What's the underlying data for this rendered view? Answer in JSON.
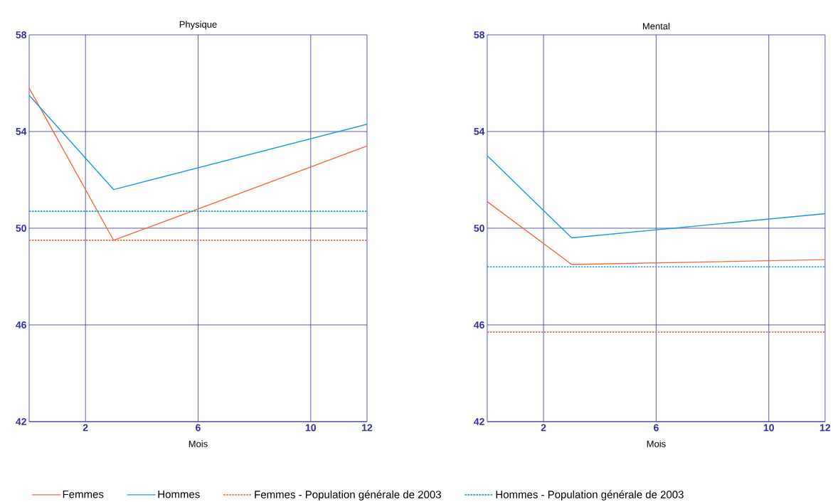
{
  "chart_data": [
    {
      "type": "line",
      "title": "Physique",
      "xlabel": "Mois",
      "xlim": [
        0,
        12
      ],
      "xticks": [
        2,
        6,
        10,
        12
      ],
      "ylim": [
        42,
        58
      ],
      "yticks": [
        42,
        46,
        50,
        54,
        58
      ],
      "grid": true,
      "legend": "bottom",
      "marker": "none",
      "line_style": "solid",
      "series": [
        {
          "name": "Femmes",
          "color": "#f26a3f",
          "x": [
            0,
            3,
            12
          ],
          "values": [
            55.8,
            49.5,
            53.4
          ]
        },
        {
          "name": "Hommes",
          "color": "#1a9ad6",
          "x": [
            0,
            3,
            12
          ],
          "values": [
            55.5,
            51.6,
            54.3
          ]
        },
        {
          "name": "Femmes - Population générale de 2003",
          "color": "#f26a3f",
          "line_style": "dotted",
          "x": [
            0,
            12
          ],
          "values": [
            49.5,
            49.5
          ]
        },
        {
          "name": "Hommes - Population générale de 2003",
          "color": "#1a9ad6",
          "line_style": "dotted",
          "x": [
            0,
            12
          ],
          "values": [
            50.7,
            50.7
          ]
        }
      ]
    },
    {
      "type": "line",
      "title": "Mental",
      "xlabel": "Mois",
      "xlim": [
        0,
        12
      ],
      "xticks": [
        2,
        6,
        10,
        12
      ],
      "ylim": [
        42,
        58
      ],
      "yticks": [
        42,
        46,
        50,
        54,
        58
      ],
      "grid": true,
      "marker": "none",
      "line_style": "solid",
      "series": [
        {
          "color": "#f26a3f",
          "x": [
            0,
            3,
            12
          ],
          "values": [
            51.1,
            48.5,
            48.7
          ]
        },
        {
          "color": "#1a9ad6",
          "x": [
            0,
            3,
            12
          ],
          "values": [
            53.0,
            49.6,
            50.6
          ]
        },
        {
          "color": "#f26a3f",
          "line_style": "dotted",
          "x": [
            0,
            12
          ],
          "values": [
            45.7,
            45.7
          ]
        },
        {
          "color": "#1a9ad6",
          "line_style": "dotted",
          "x": [
            0,
            12
          ],
          "values": [
            48.4,
            48.4
          ]
        }
      ]
    }
  ]
}
